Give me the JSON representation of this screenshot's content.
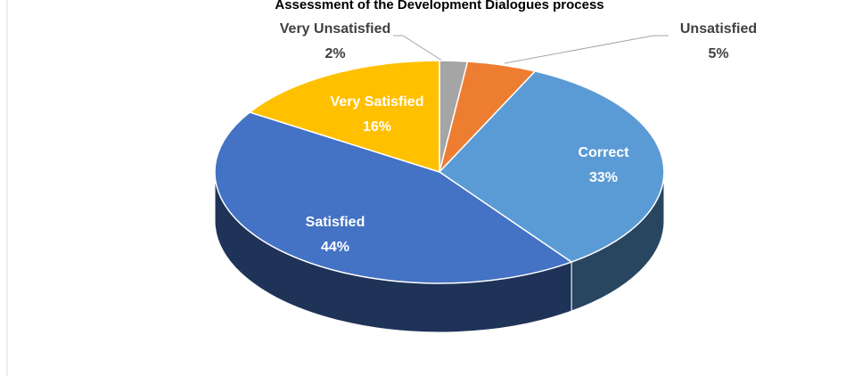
{
  "chart_data": {
    "type": "pie",
    "title": "Assessment of the Development Dialogues process",
    "categories": [
      "Very Unsatisfied",
      "Unsatisfied",
      "Correct",
      "Satisfied",
      "Very Satisfied"
    ],
    "values": [
      2,
      5,
      33,
      44,
      16
    ],
    "value_labels": [
      "2%",
      "5%",
      "33%",
      "44%",
      "16%"
    ],
    "colors": [
      "#a5a5a5",
      "#ed7d31",
      "#5b9bd5",
      "#4472c4",
      "#ffc000"
    ]
  }
}
